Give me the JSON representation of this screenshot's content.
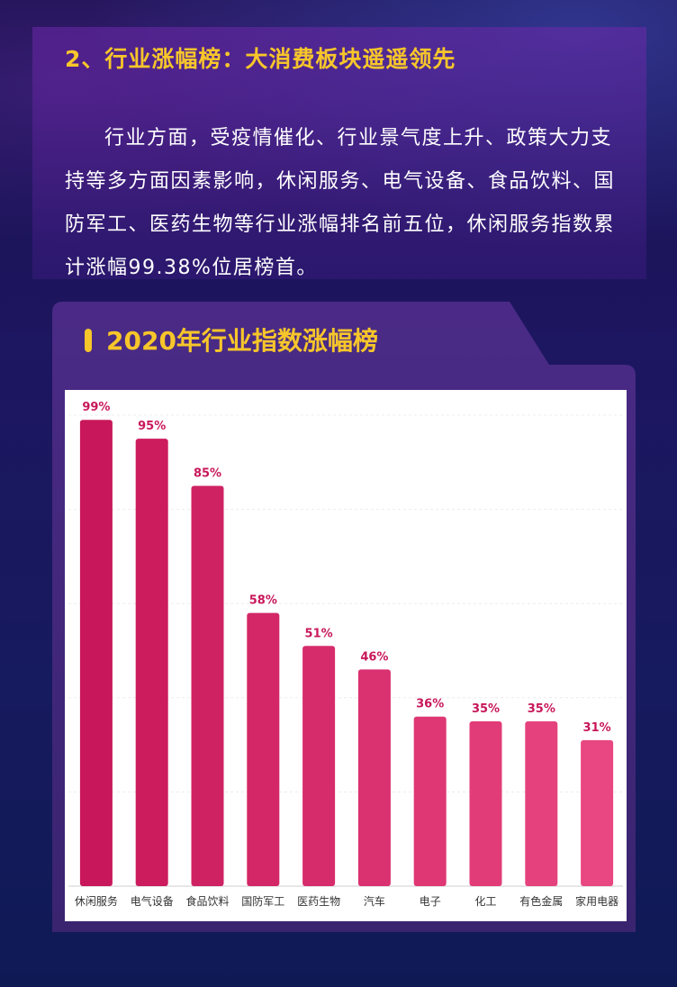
{
  "section": {
    "heading": "2、行业涨幅榜：大消费板块遥遥领先",
    "paragraph": "行业方面，受疫情催化、行业景气度上升、政策大力支持等多方面因素影响，休闲服务、电气设备、食品饮料、国防军工、医药生物等行业涨幅排名前五位，休闲服务指数累计涨幅99.38%位居榜首。"
  },
  "colors": {
    "accent_yellow": "#f7c62a",
    "bar_dark": "#c8175a",
    "bar_light": "#e94781",
    "label_color": "#c8175a"
  },
  "chart_data": {
    "type": "bar",
    "title": "2020年行业指数涨幅榜",
    "categories": [
      "休闲服务",
      "电气设备",
      "食品饮料",
      "国防军工",
      "医药生物",
      "汽车",
      "电子",
      "化工",
      "有色金属",
      "家用电器"
    ],
    "values": [
      99,
      95,
      85,
      58,
      51,
      46,
      36,
      35,
      35,
      31
    ],
    "value_labels": [
      "99%",
      "95%",
      "85%",
      "58%",
      "51%",
      "46%",
      "36%",
      "35%",
      "35%",
      "31%"
    ],
    "xlabel": "",
    "ylabel": "",
    "ylim": [
      0,
      100
    ],
    "grid": true
  }
}
